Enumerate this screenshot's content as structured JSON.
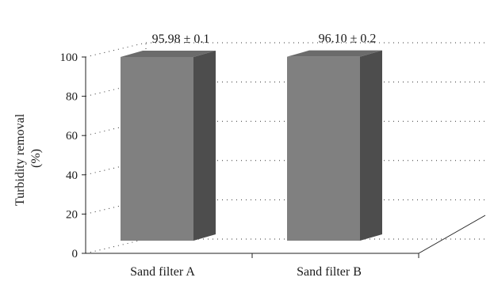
{
  "chart_data": {
    "type": "bar",
    "categories": [
      "Sand filter A",
      "Sand filter B"
    ],
    "values": [
      95.98,
      96.1
    ],
    "data_labels": [
      "95.98 ± 0.1",
      "96.10 ± 0.2"
    ],
    "title": "",
    "xlabel": "",
    "ylabel_lines": [
      "Turbidity removal",
      "(%)"
    ],
    "ylim": [
      0,
      100
    ],
    "yticks": [
      0,
      20,
      40,
      60,
      80,
      100
    ],
    "grid": true,
    "style": "3d",
    "colors": {
      "bar_front": "#808080",
      "bar_side": "#4d4d4d",
      "bar_top": "#6b6b6b"
    }
  }
}
